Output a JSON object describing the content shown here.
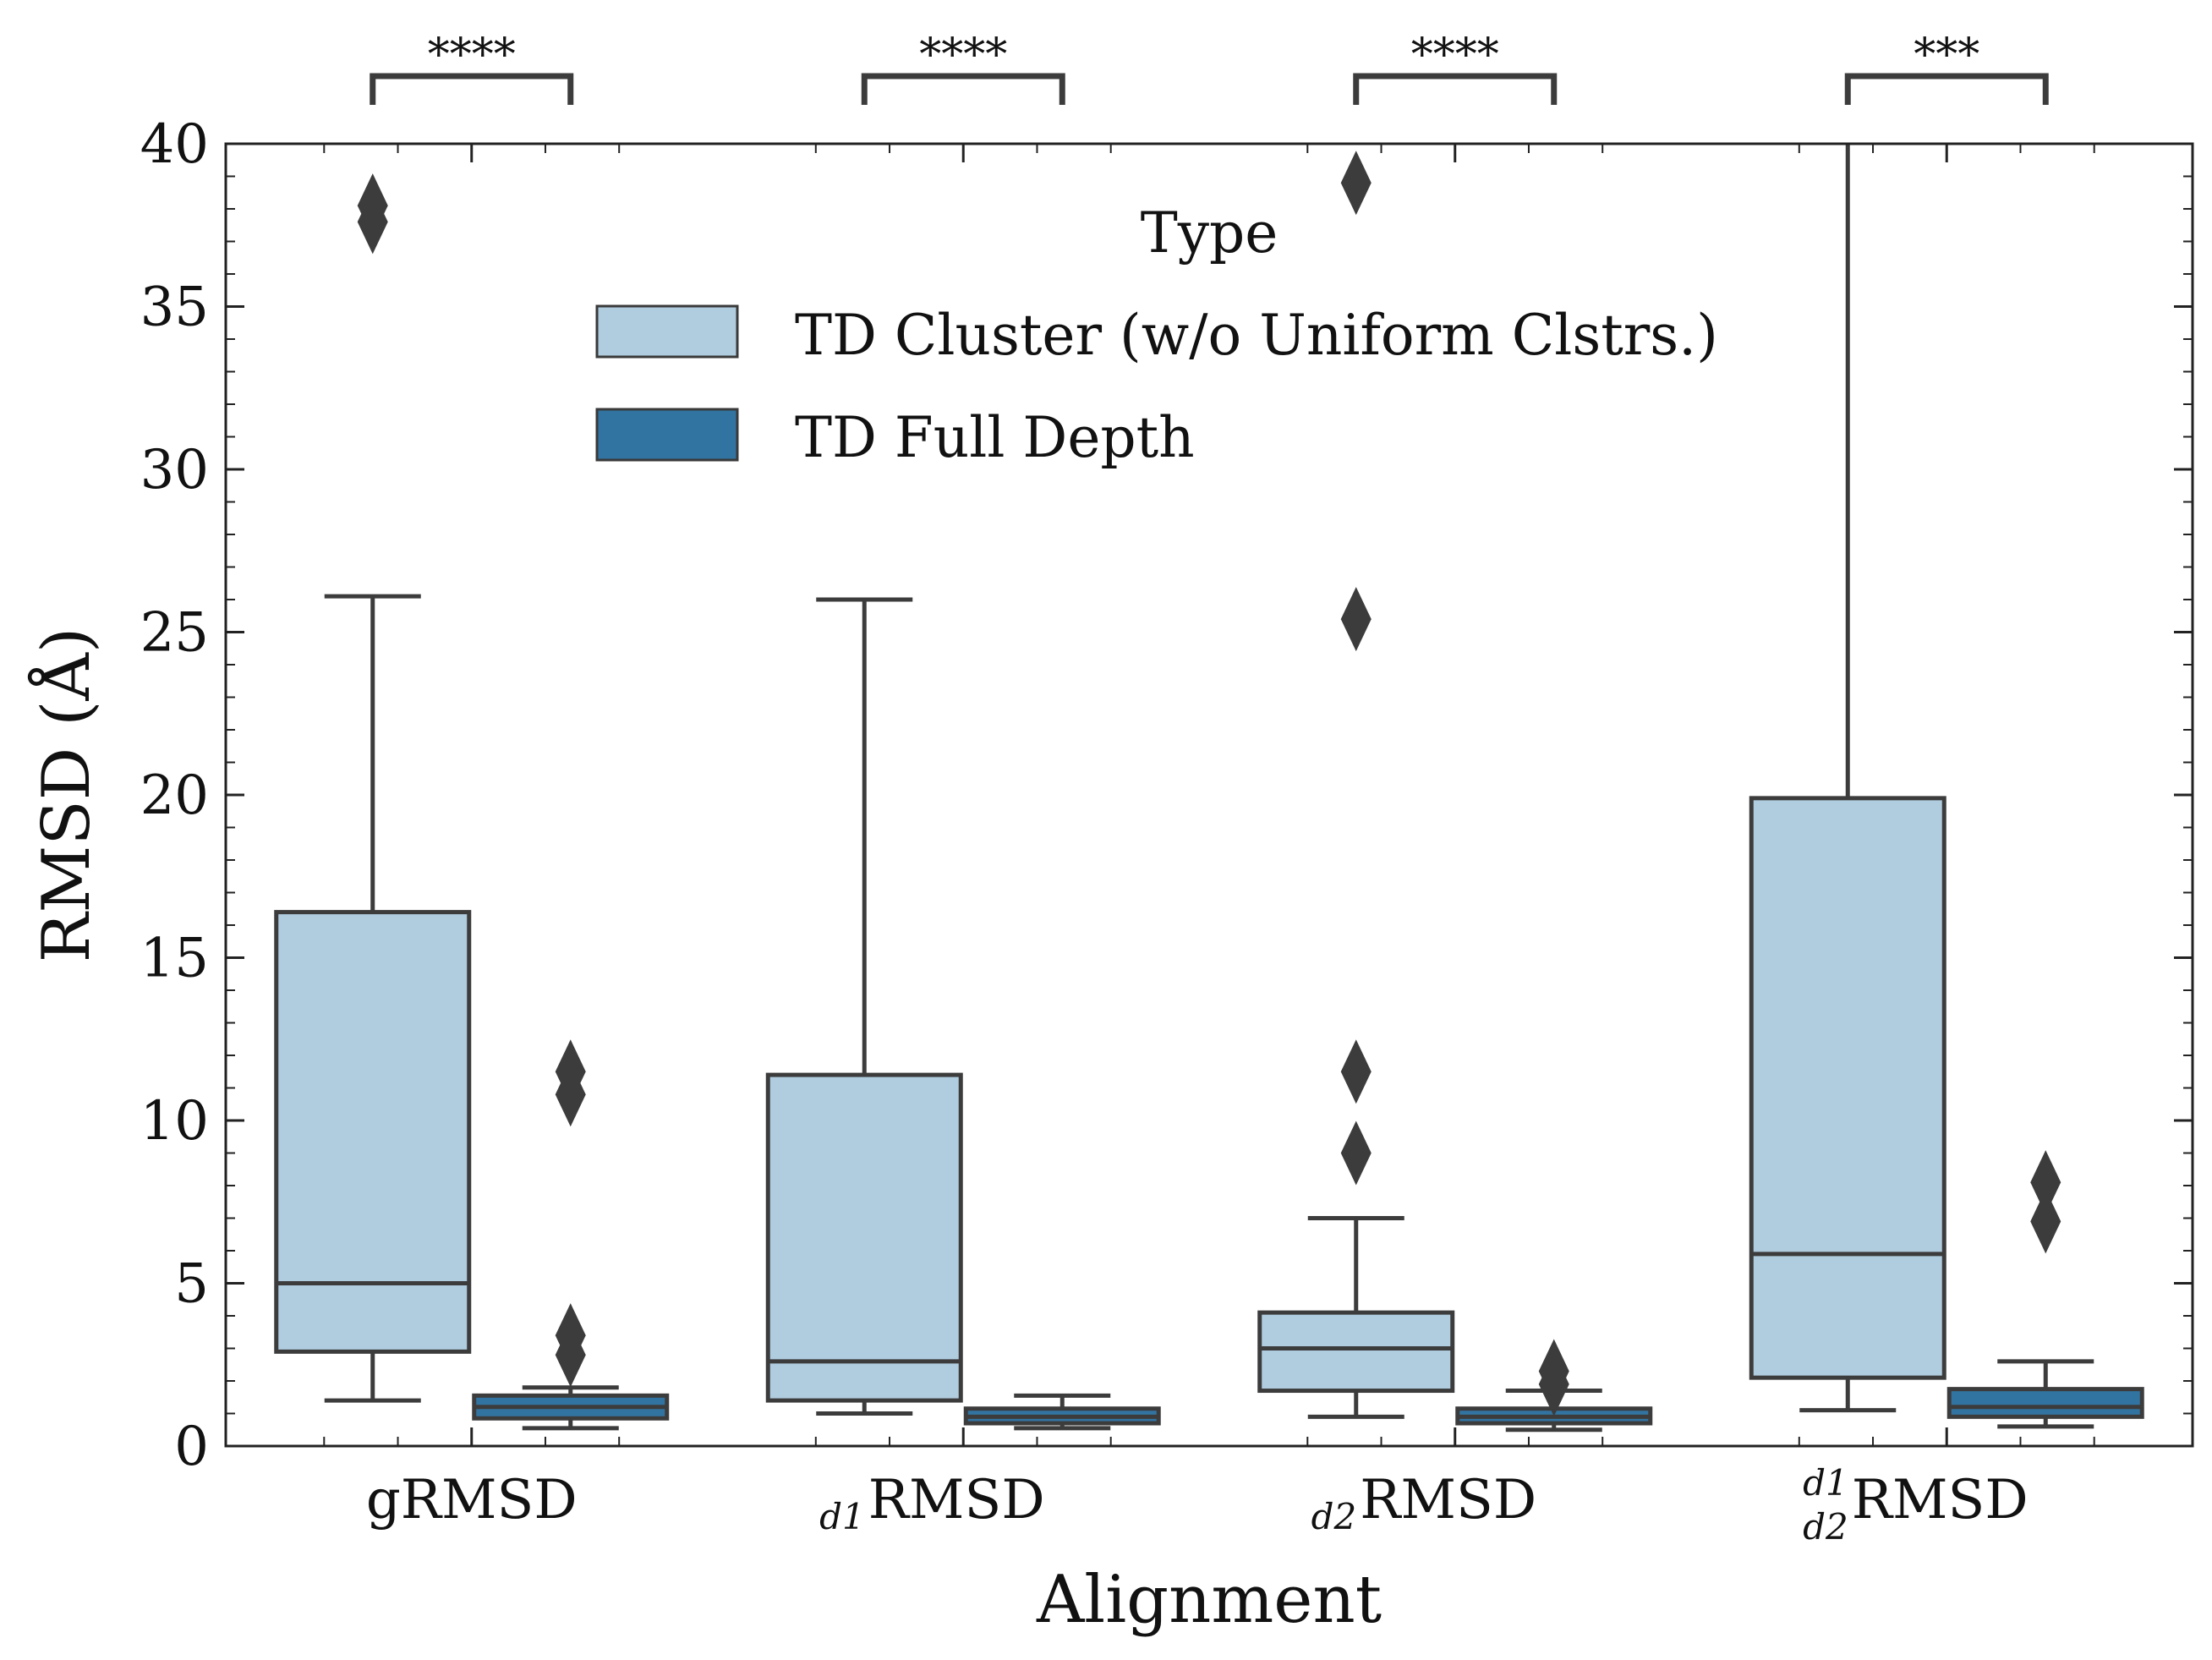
{
  "chart_data": {
    "type": "box",
    "xlabel": "Alignment",
    "ylabel": "RMSD (Å)",
    "ylim": [
      0,
      40
    ],
    "yticks": [
      0,
      5,
      10,
      15,
      20,
      25,
      30,
      35,
      40
    ],
    "grid": false,
    "legend": {
      "title": "Type",
      "placement": "top-center",
      "entries": [
        {
          "label": "TD Cluster (w/o Uniform Clstrs.)",
          "color": "#b0cde0"
        },
        {
          "label": "TD Full Depth",
          "color": "#3274a1"
        }
      ]
    },
    "categories": [
      {
        "main": "gRMSD",
        "sub_lower": "",
        "sub_upper": ""
      },
      {
        "main": "RMSD",
        "sub_lower": "d1",
        "sub_upper": ""
      },
      {
        "main": "RMSD",
        "sub_lower": "d2",
        "sub_upper": ""
      },
      {
        "main": "RMSD",
        "sub_lower": "d2",
        "sub_upper": "d1"
      }
    ],
    "series": [
      {
        "name": "TD Cluster (w/o Uniform Clstrs.)",
        "color": "#b0cde0",
        "boxes": [
          {
            "whislo": 1.4,
            "q1": 2.9,
            "med": 5.0,
            "q3": 16.4,
            "whishi": 26.1,
            "fliers": [
              37.6,
              38.1
            ]
          },
          {
            "whislo": 1.0,
            "q1": 1.4,
            "med": 2.6,
            "q3": 11.4,
            "whishi": 26.0,
            "fliers": []
          },
          {
            "whislo": 0.9,
            "q1": 1.7,
            "med": 3.0,
            "q3": 4.1,
            "whishi": 7.0,
            "fliers": [
              9.0,
              11.5,
              25.4,
              38.8
            ]
          },
          {
            "whislo": 1.1,
            "q1": 2.1,
            "med": 5.9,
            "q3": 19.9,
            "whishi": 40.5,
            "fliers": []
          }
        ]
      },
      {
        "name": "TD Full Depth",
        "color": "#3274a1",
        "boxes": [
          {
            "whislo": 0.55,
            "q1": 0.85,
            "med": 1.2,
            "q3": 1.55,
            "whishi": 1.8,
            "fliers": [
              2.8,
              3.4,
              10.8,
              11.5
            ]
          },
          {
            "whislo": 0.55,
            "q1": 0.7,
            "med": 0.9,
            "q3": 1.15,
            "whishi": 1.55,
            "fliers": []
          },
          {
            "whislo": 0.5,
            "q1": 0.7,
            "med": 0.9,
            "q3": 1.15,
            "whishi": 1.7,
            "fliers": [
              1.9,
              2.3
            ]
          },
          {
            "whislo": 0.6,
            "q1": 0.9,
            "med": 1.2,
            "q3": 1.75,
            "whishi": 2.6,
            "fliers": [
              6.9,
              8.1
            ]
          }
        ]
      }
    ],
    "significance": [
      "****",
      "****",
      "****",
      "***"
    ]
  }
}
